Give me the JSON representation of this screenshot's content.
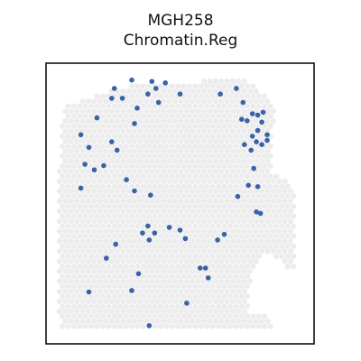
{
  "chart_data": {
    "type": "scatter",
    "title": "MGH258",
    "subtitle": "Chromatin.Reg",
    "xlabel": "",
    "ylabel": "",
    "xlim": [
      0,
      100
    ],
    "ylim": [
      0,
      100
    ],
    "grid": false,
    "legend": "none",
    "axes_ticks": false,
    "background_spots_color": "#ececec",
    "background_spots": "hexagonal grid of tissue spots covering the section",
    "series": [
      {
        "color": "#3a62a7",
        "points": [
          {
            "x": 25.5,
            "y": 91.0
          },
          {
            "x": 32.0,
            "y": 94.0
          },
          {
            "x": 38.0,
            "y": 89.0
          },
          {
            "x": 39.5,
            "y": 93.5
          },
          {
            "x": 41.0,
            "y": 91.0
          },
          {
            "x": 24.5,
            "y": 87.5
          },
          {
            "x": 28.5,
            "y": 87.5
          },
          {
            "x": 34.0,
            "y": 84.0
          },
          {
            "x": 50.0,
            "y": 89.0
          },
          {
            "x": 44.5,
            "y": 93.0
          },
          {
            "x": 42.0,
            "y": 86.0
          },
          {
            "x": 19.0,
            "y": 80.5
          },
          {
            "x": 13.0,
            "y": 74.5
          },
          {
            "x": 24.5,
            "y": 72.0
          },
          {
            "x": 33.0,
            "y": 78.5
          },
          {
            "x": 16.0,
            "y": 70.0
          },
          {
            "x": 26.5,
            "y": 69.0
          },
          {
            "x": 14.5,
            "y": 64.0
          },
          {
            "x": 21.5,
            "y": 63.5
          },
          {
            "x": 18.0,
            "y": 62.0
          },
          {
            "x": 30.0,
            "y": 58.5
          },
          {
            "x": 13.0,
            "y": 55.5
          },
          {
            "x": 33.0,
            "y": 54.5
          },
          {
            "x": 65.0,
            "y": 89.0
          },
          {
            "x": 71.0,
            "y": 91.0
          },
          {
            "x": 73.5,
            "y": 86.0
          },
          {
            "x": 77.0,
            "y": 82.0
          },
          {
            "x": 79.0,
            "y": 81.5
          },
          {
            "x": 81.0,
            "y": 82.5
          },
          {
            "x": 73.0,
            "y": 80.0
          },
          {
            "x": 75.0,
            "y": 79.5
          },
          {
            "x": 80.5,
            "y": 79.0
          },
          {
            "x": 79.0,
            "y": 76.0
          },
          {
            "x": 77.0,
            "y": 74.0
          },
          {
            "x": 78.5,
            "y": 72.0
          },
          {
            "x": 80.5,
            "y": 71.0
          },
          {
            "x": 82.5,
            "y": 72.5
          },
          {
            "x": 82.5,
            "y": 74.5
          },
          {
            "x": 74.0,
            "y": 71.0
          },
          {
            "x": 76.5,
            "y": 69.0
          },
          {
            "x": 77.5,
            "y": 62.5
          },
          {
            "x": 75.5,
            "y": 56.5
          },
          {
            "x": 79.0,
            "y": 56.0
          },
          {
            "x": 71.5,
            "y": 52.5
          },
          {
            "x": 39.0,
            "y": 53.0
          },
          {
            "x": 80.0,
            "y": 46.5
          },
          {
            "x": 78.5,
            "y": 47.0
          },
          {
            "x": 38.0,
            "y": 42.0
          },
          {
            "x": 40.5,
            "y": 39.5
          },
          {
            "x": 36.0,
            "y": 39.5
          },
          {
            "x": 46.0,
            "y": 41.5
          },
          {
            "x": 50.0,
            "y": 40.5
          },
          {
            "x": 52.0,
            "y": 37.5
          },
          {
            "x": 66.5,
            "y": 39.0
          },
          {
            "x": 64.0,
            "y": 37.0
          },
          {
            "x": 38.5,
            "y": 37.0
          },
          {
            "x": 26.0,
            "y": 35.5
          },
          {
            "x": 22.5,
            "y": 30.5
          },
          {
            "x": 57.5,
            "y": 27.0
          },
          {
            "x": 59.5,
            "y": 27.0
          },
          {
            "x": 34.5,
            "y": 25.0
          },
          {
            "x": 60.5,
            "y": 23.5
          },
          {
            "x": 16.0,
            "y": 18.5
          },
          {
            "x": 32.0,
            "y": 19.0
          },
          {
            "x": 52.5,
            "y": 14.5
          },
          {
            "x": 38.5,
            "y": 6.5
          }
        ]
      }
    ]
  }
}
